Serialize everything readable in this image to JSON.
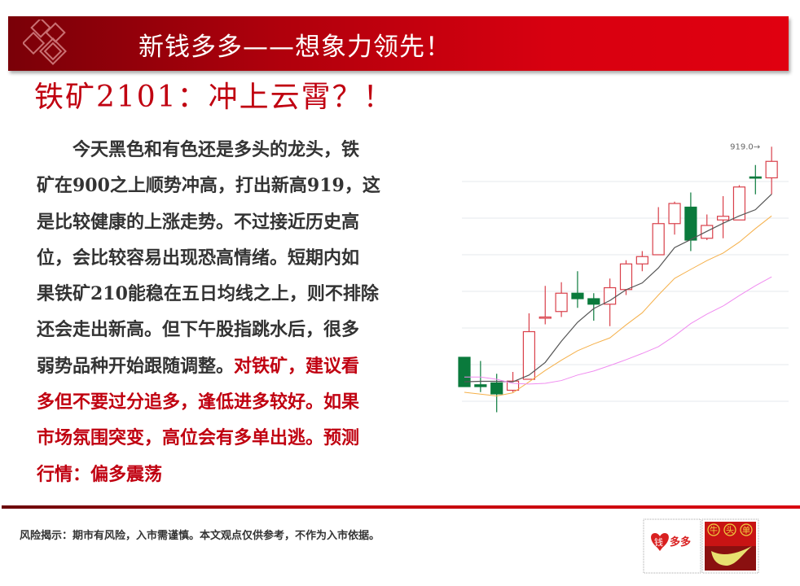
{
  "banner": {
    "title": "新钱多多——想象力领先！"
  },
  "headline": "铁矿2101：冲上云霄？！",
  "body": {
    "lines": [
      [
        {
          "t": "　　今天黑色和有色还是多头的龙头，铁",
          "red": false
        }
      ],
      [
        {
          "t": "矿在900之上顺势冲高，打出新高919，这",
          "red": false
        }
      ],
      [
        {
          "t": "是比较健康的上涨走势。不过接近历史高",
          "red": false
        }
      ],
      [
        {
          "t": "位，会比较容易出现恐高情绪。短期内如",
          "red": false
        }
      ],
      [
        {
          "t": "果铁矿210能稳在五日均线之上，则不排除",
          "red": false
        }
      ],
      [
        {
          "t": "还会走出新高。但下午股指跳水后，很多",
          "red": false
        }
      ],
      [
        {
          "t": "弱势品种开始跟随调整。",
          "red": false
        },
        {
          "t": "对铁矿，建议看",
          "red": true
        }
      ],
      [
        {
          "t": "多但不要过分追多，逢低进多较好。如果",
          "red": true
        }
      ],
      [
        {
          "t": "市场氛围突变，高位会有多单出逃。预测",
          "red": true
        }
      ],
      [
        {
          "t": "行情：偏多震荡",
          "red": true
        }
      ]
    ]
  },
  "chart_data": {
    "type": "candlestick",
    "title": "",
    "xlabel": "",
    "ylabel": "",
    "ylim": [
      768,
      928
    ],
    "grid": true,
    "annotation": "919.0→",
    "colors": {
      "up": "#d9404a",
      "down": "#0a7a3c",
      "ma5": "#555555",
      "ma10": "#f5b04a",
      "ma20": "#f08cf0"
    },
    "candles": [
      {
        "o": 804,
        "h": 804,
        "l": 788,
        "c": 788
      },
      {
        "o": 789,
        "h": 802,
        "l": 785,
        "c": 788
      },
      {
        "o": 790,
        "h": 795,
        "l": 774,
        "c": 784
      },
      {
        "o": 786,
        "h": 796,
        "l": 785,
        "c": 791
      },
      {
        "o": 792,
        "h": 828,
        "l": 792,
        "c": 818
      },
      {
        "o": 826,
        "h": 843,
        "l": 822,
        "c": 826
      },
      {
        "o": 829,
        "h": 845,
        "l": 826,
        "c": 839
      },
      {
        "o": 839,
        "h": 851,
        "l": 831,
        "c": 836
      },
      {
        "o": 836,
        "h": 839,
        "l": 824,
        "c": 833
      },
      {
        "o": 833,
        "h": 847,
        "l": 821,
        "c": 842
      },
      {
        "o": 841,
        "h": 857,
        "l": 838,
        "c": 855
      },
      {
        "o": 855,
        "h": 862,
        "l": 851,
        "c": 859
      },
      {
        "o": 860,
        "h": 886,
        "l": 860,
        "c": 877
      },
      {
        "o": 877,
        "h": 889,
        "l": 871,
        "c": 888
      },
      {
        "o": 886,
        "h": 894,
        "l": 862,
        "c": 868
      },
      {
        "o": 869,
        "h": 882,
        "l": 868,
        "c": 876
      },
      {
        "o": 879,
        "h": 892,
        "l": 869,
        "c": 881
      },
      {
        "o": 879,
        "h": 898,
        "l": 879,
        "c": 897
      },
      {
        "o": 902.5,
        "h": 909,
        "l": 893,
        "c": 902
      },
      {
        "o": 902,
        "h": 919,
        "l": 893,
        "c": 911
      }
    ],
    "ma5": [
      790.6,
      790.9,
      790.9,
      790.6,
      794.3,
      801.2,
      812.8,
      823.1,
      830.6,
      835.0,
      840.9,
      844.6,
      852.8,
      863.9,
      868.3,
      872.8,
      877.2,
      881.2,
      884.6,
      893.1
    ],
    "ma10": [
      784.9,
      783.9,
      782.9,
      784.6,
      790.6,
      796.8,
      802.4,
      807.6,
      811.3,
      814.6,
      821.7,
      828.3,
      838.0,
      847.1,
      852.0,
      856.8,
      860.9,
      866.9,
      874.3,
      881.2
    ],
    "ma20": [
      793.2,
      793.2,
      792.0,
      789.8,
      789.4,
      789.8,
      791.3,
      794.3,
      796.5,
      799.5,
      802.7,
      806.1,
      809.8,
      815.7,
      822.4,
      827.6,
      832.0,
      837.7,
      843.1,
      847.9
    ]
  },
  "footer": {
    "disclaimer": "风险揭示：期市有风险，入市需谨慎。本文观点仅供参考，不作为入市依据。"
  },
  "logos": {
    "left": "钱多多",
    "right": "牛头单"
  }
}
